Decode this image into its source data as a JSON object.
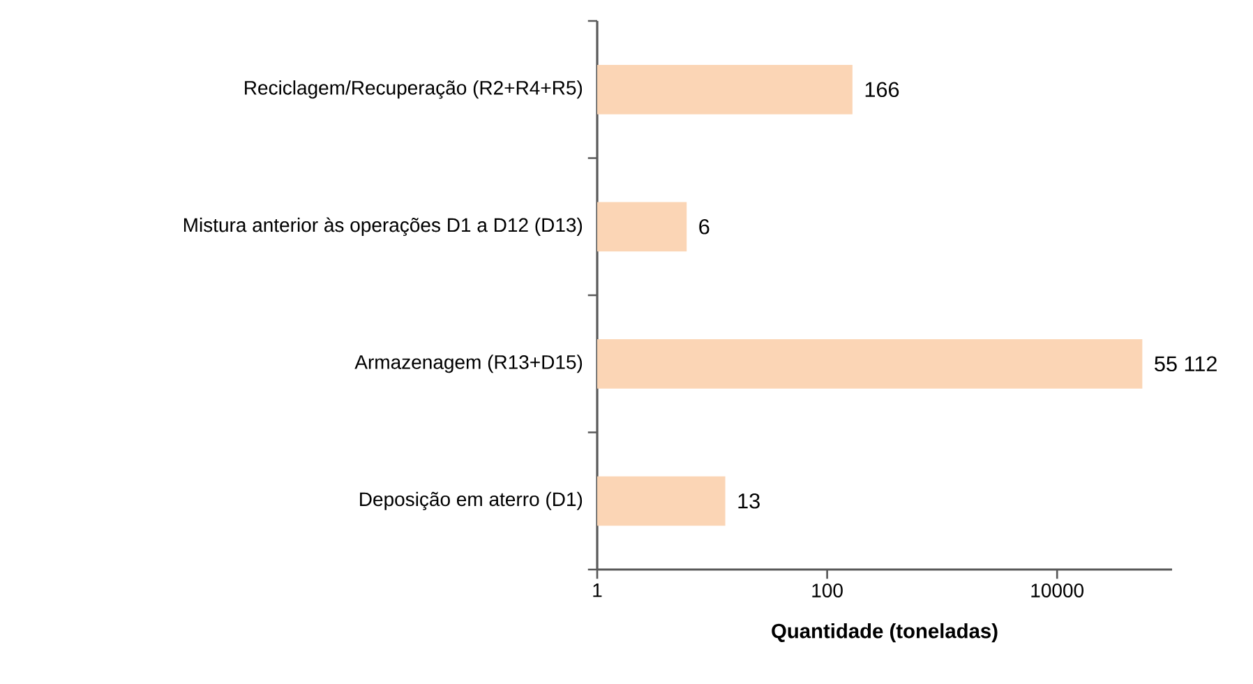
{
  "chart_data": {
    "type": "bar",
    "orientation": "horizontal",
    "log": "x",
    "categories": [
      "Reciclagem/Recuperação (R2+R4+R5)",
      "Mistura anterior às operações D1 a D12 (D13)",
      "Armazenagem (R13+D15)",
      "Deposição em aterro (D1)"
    ],
    "values": [
      166,
      6,
      55112,
      13
    ],
    "value_labels": [
      "166",
      "6",
      "55 112",
      "13"
    ],
    "color": "#fbd5b5",
    "xlim": [
      1,
      100000
    ],
    "xticks": [
      1,
      100,
      10000
    ],
    "xlabel": "Quantidade (toneladas)"
  }
}
